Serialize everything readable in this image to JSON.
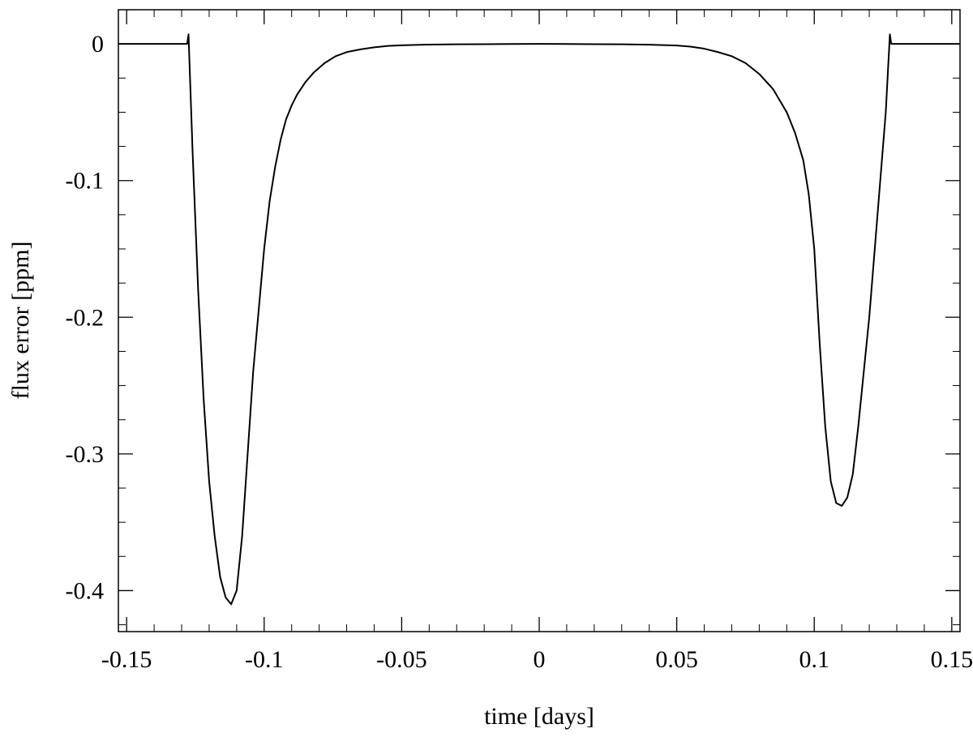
{
  "chart_data": {
    "type": "line",
    "title": "",
    "xlabel": "time [days]",
    "ylabel": "flux error [ppm]",
    "xlim": [
      -0.153,
      0.153
    ],
    "ylim": [
      -0.43,
      0.025
    ],
    "grid": false,
    "line_color": "#000000",
    "x_ticks": [
      {
        "value": -0.15,
        "label": "-0.15"
      },
      {
        "value": -0.1,
        "label": "-0.1"
      },
      {
        "value": -0.05,
        "label": "-0.05"
      },
      {
        "value": 0,
        "label": "0"
      },
      {
        "value": 0.05,
        "label": "0.05"
      },
      {
        "value": 0.1,
        "label": "0.1"
      },
      {
        "value": 0.15,
        "label": "0.15"
      }
    ],
    "x_minor_step": 0.01,
    "y_ticks": [
      {
        "value": 0,
        "label": "0"
      },
      {
        "value": -0.1,
        "label": "-0.1"
      },
      {
        "value": -0.2,
        "label": "-0.2"
      },
      {
        "value": -0.3,
        "label": "-0.3"
      },
      {
        "value": -0.4,
        "label": "-0.4"
      }
    ],
    "y_minor_step": 0.025,
    "series": [
      {
        "x": [
          -0.153,
          -0.128,
          -0.1275,
          -0.126,
          -0.124,
          -0.122,
          -0.12,
          -0.118,
          -0.116,
          -0.114,
          -0.112,
          -0.11,
          -0.108,
          -0.106,
          -0.104,
          -0.102,
          -0.1,
          -0.098,
          -0.096,
          -0.094,
          -0.092,
          -0.09,
          -0.088,
          -0.085,
          -0.082,
          -0.078,
          -0.074,
          -0.07,
          -0.065,
          -0.06,
          -0.055,
          -0.05,
          -0.04,
          -0.03,
          -0.02,
          -0.01,
          0,
          0.01,
          0.02,
          0.03,
          0.04,
          0.05,
          0.055,
          0.06,
          0.065,
          0.07,
          0.075,
          0.08,
          0.085,
          0.09,
          0.093,
          0.096,
          0.098,
          0.1,
          0.102,
          0.104,
          0.106,
          0.108,
          0.11,
          0.112,
          0.114,
          0.116,
          0.118,
          0.12,
          0.122,
          0.124,
          0.126,
          0.1275,
          0.128,
          0.153
        ],
        "y": [
          0,
          0,
          0.007,
          -0.08,
          -0.18,
          -0.26,
          -0.32,
          -0.36,
          -0.39,
          -0.405,
          -0.41,
          -0.4,
          -0.36,
          -0.3,
          -0.24,
          -0.195,
          -0.15,
          -0.115,
          -0.09,
          -0.07,
          -0.055,
          -0.045,
          -0.037,
          -0.028,
          -0.021,
          -0.014,
          -0.009,
          -0.006,
          -0.004,
          -0.0025,
          -0.0015,
          -0.001,
          -0.0005,
          -0.0003,
          -0.0002,
          -0.0001,
          0,
          -0.0001,
          -0.0002,
          -0.0003,
          -0.0006,
          -0.0012,
          -0.002,
          -0.0035,
          -0.006,
          -0.009,
          -0.014,
          -0.022,
          -0.033,
          -0.05,
          -0.065,
          -0.085,
          -0.11,
          -0.15,
          -0.22,
          -0.28,
          -0.32,
          -0.336,
          -0.338,
          -0.332,
          -0.315,
          -0.28,
          -0.24,
          -0.2,
          -0.15,
          -0.1,
          -0.05,
          0.007,
          0,
          0
        ]
      }
    ]
  }
}
